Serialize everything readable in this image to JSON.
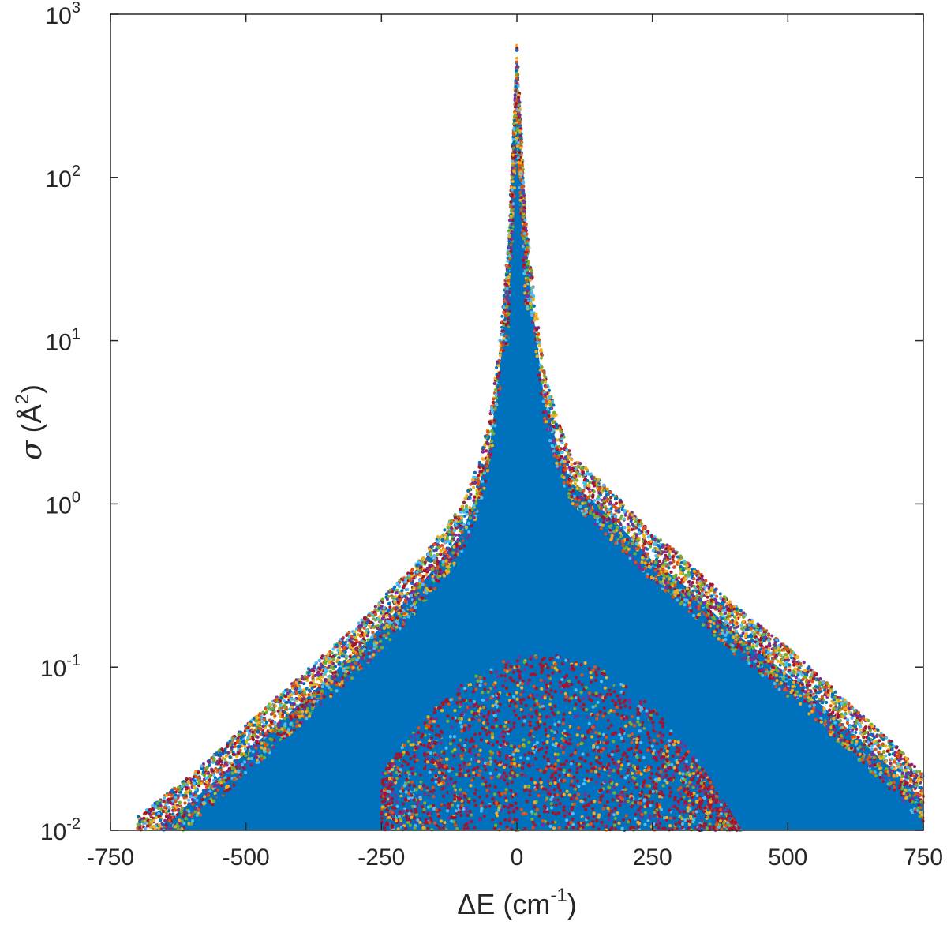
{
  "chart_data": {
    "type": "scatter",
    "title": "",
    "xlabel": {
      "base": "ΔE (cm",
      "sup": "-1",
      "tail": ")"
    },
    "ylabel": {
      "symbol": "σ",
      "base": " (Å",
      "sup": "2",
      "tail": ")"
    },
    "xlim": [
      -750,
      750
    ],
    "ylim": [
      0.01,
      1000
    ],
    "yscale": "log",
    "grid": false,
    "legend": "none",
    "x_ticks": [
      "-750",
      "-500",
      "-250",
      "0",
      "250",
      "500",
      "750"
    ],
    "x_tick_values": [
      -750,
      -500,
      -250,
      0,
      250,
      500,
      750
    ],
    "y_ticks": [
      {
        "base": "10",
        "exp": "-2",
        "value": 0.01
      },
      {
        "base": "10",
        "exp": "-1",
        "value": 0.1
      },
      {
        "base": "10",
        "exp": "0",
        "value": 1
      },
      {
        "base": "10",
        "exp": "1",
        "value": 10
      },
      {
        "base": "10",
        "exp": "2",
        "value": 100
      },
      {
        "base": "10",
        "exp": "3",
        "value": 1000
      }
    ],
    "peak": {
      "x": 0,
      "y": 600
    },
    "upper_envelope": [
      [
        -700,
        0.011
      ],
      [
        -600,
        0.02
      ],
      [
        -500,
        0.04
      ],
      [
        -400,
        0.08
      ],
      [
        -300,
        0.16
      ],
      [
        -200,
        0.35
      ],
      [
        -150,
        0.55
      ],
      [
        -100,
        0.9
      ],
      [
        -75,
        1.5
      ],
      [
        -50,
        3
      ],
      [
        -30,
        10
      ],
      [
        -15,
        40
      ],
      [
        0,
        600
      ],
      [
        15,
        60
      ],
      [
        30,
        20
      ],
      [
        50,
        6
      ],
      [
        75,
        3
      ],
      [
        100,
        1.8
      ],
      [
        150,
        1.3
      ],
      [
        200,
        0.9
      ],
      [
        250,
        0.6
      ],
      [
        300,
        0.45
      ],
      [
        400,
        0.22
      ],
      [
        500,
        0.12
      ],
      [
        600,
        0.06
      ],
      [
        700,
        0.03
      ],
      [
        750,
        0.02
      ]
    ],
    "series_colors": [
      "#0072BD",
      "#D95319",
      "#EDB120",
      "#7E2F8E",
      "#77AC30",
      "#4DBEEE",
      "#A2142F"
    ],
    "fill_color": "#0072BD"
  }
}
